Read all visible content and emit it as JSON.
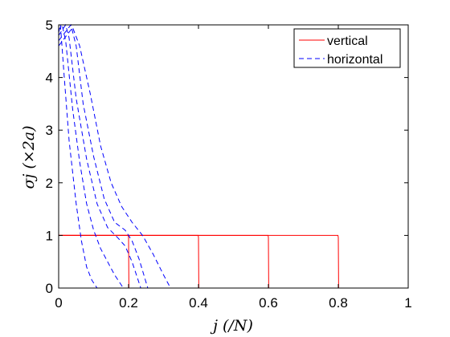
{
  "chart_data": {
    "type": "line",
    "title": "",
    "xlabel": "j (/N)",
    "ylabel": "σj (×2a)",
    "xlim": [
      0,
      1
    ],
    "ylim": [
      0,
      5
    ],
    "xticks": [
      0,
      0.2,
      0.4,
      0.6,
      0.8,
      1
    ],
    "yticks": [
      0,
      1,
      2,
      3,
      4,
      5
    ],
    "grid": false,
    "legend": {
      "position": "top-right",
      "entries": [
        {
          "name": "vertical",
          "color": "#ff0000",
          "style": "solid"
        },
        {
          "name": "horizontal",
          "color": "#0000ff",
          "style": "dashed"
        }
      ]
    },
    "series": [
      {
        "name": "vertical",
        "color": "#ff0000",
        "style": "solid",
        "curves": [
          {
            "x": [
              0,
              0.199,
              0.2,
              0.201,
              1
            ],
            "y": [
              1,
              1,
              0.96,
              0,
              0
            ]
          },
          {
            "x": [
              0,
              0.399,
              0.4,
              0.401,
              1
            ],
            "y": [
              1,
              1,
              0.96,
              0,
              0
            ]
          },
          {
            "x": [
              0,
              0.599,
              0.6,
              0.601,
              1
            ],
            "y": [
              1,
              1,
              0.96,
              0,
              0
            ]
          },
          {
            "x": [
              0,
              0.799,
              0.8,
              0.801,
              1
            ],
            "y": [
              1,
              1,
              0.96,
              0,
              0
            ]
          }
        ]
      },
      {
        "name": "horizontal",
        "color": "#0000ff",
        "style": "dashed",
        "curves": [
          {
            "x": [
              0,
              0.005,
              0.015,
              0.03,
              0.05,
              0.065,
              0.08,
              0.095,
              0.11,
              1
            ],
            "y": [
              4.85,
              5,
              4.1,
              2.8,
              1.6,
              0.9,
              0.4,
              0.15,
              0,
              0
            ]
          },
          {
            "x": [
              0,
              0.01,
              0.02,
              0.04,
              0.06,
              0.08,
              0.1,
              0.12,
              0.14,
              0.16,
              0.185,
              1
            ],
            "y": [
              4.9,
              5,
              4.7,
              3.4,
              2.4,
              1.6,
              1.1,
              0.75,
              0.5,
              0.25,
              0,
              0
            ]
          },
          {
            "x": [
              0,
              0.02,
              0.03,
              0.05,
              0.08,
              0.11,
              0.14,
              0.17,
              0.19,
              0.21,
              0.235,
              1
            ],
            "y": [
              4.8,
              5,
              4.75,
              3.6,
              2.45,
              1.6,
              1.15,
              0.95,
              0.8,
              0.5,
              0,
              0
            ]
          },
          {
            "x": [
              0,
              0.035,
              0.05,
              0.07,
              0.1,
              0.13,
              0.16,
              0.19,
              0.21,
              0.23,
              0.255,
              1
            ],
            "y": [
              4.7,
              5,
              4.6,
              3.5,
              2.5,
              1.7,
              1.25,
              1.1,
              0.9,
              0.55,
              0,
              0
            ]
          },
          {
            "x": [
              0,
              0.04,
              0.06,
              0.09,
              0.12,
              0.15,
              0.18,
              0.21,
              0.24,
              0.27,
              0.3,
              0.32,
              1
            ],
            "y": [
              4.6,
              4.95,
              4.6,
              3.7,
              2.7,
              2.0,
              1.55,
              1.25,
              1.0,
              0.65,
              0.25,
              0,
              0
            ]
          }
        ]
      }
    ]
  }
}
